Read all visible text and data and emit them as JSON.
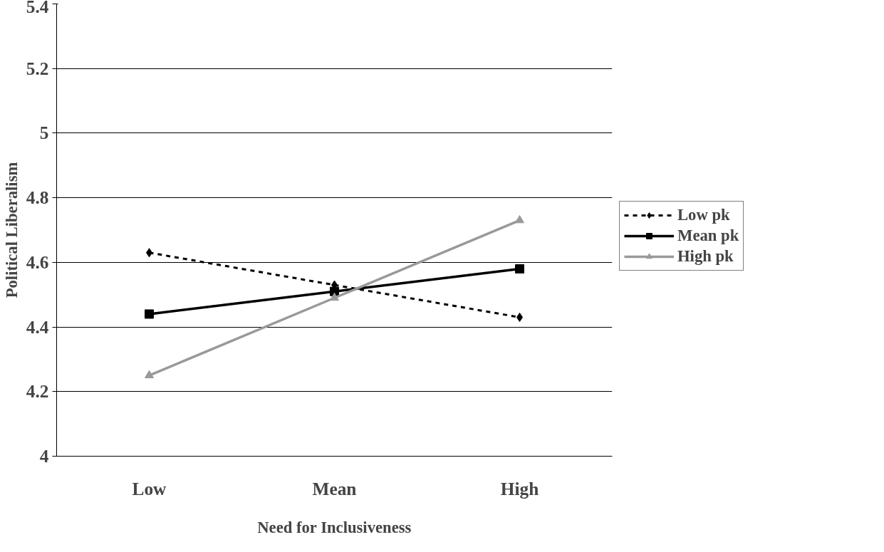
{
  "chart_data": {
    "type": "line",
    "xlabel": "Need for Inclusiveness",
    "ylabel": "Political Liberalism",
    "categories": [
      "Low",
      "Mean",
      "High"
    ],
    "series": [
      {
        "name": "Low pk",
        "color": "#000000",
        "values": [
          4.63,
          4.53,
          4.43
        ],
        "marker": "diamond",
        "line_style": "dashed"
      },
      {
        "name": "Mean pk",
        "color": "#000000",
        "values": [
          4.44,
          4.51,
          4.58
        ],
        "marker": "square",
        "line_style": "solid"
      },
      {
        "name": "High pk",
        "color": "#999999",
        "values": [
          4.25,
          4.49,
          4.73
        ],
        "marker": "triangle",
        "line_style": "solid"
      }
    ],
    "ylim": [
      4,
      5.4
    ],
    "yticks": [
      4,
      4.2,
      4.4,
      4.6,
      4.8,
      5,
      5.2,
      5.4
    ],
    "grid": "y",
    "legend": "right"
  }
}
